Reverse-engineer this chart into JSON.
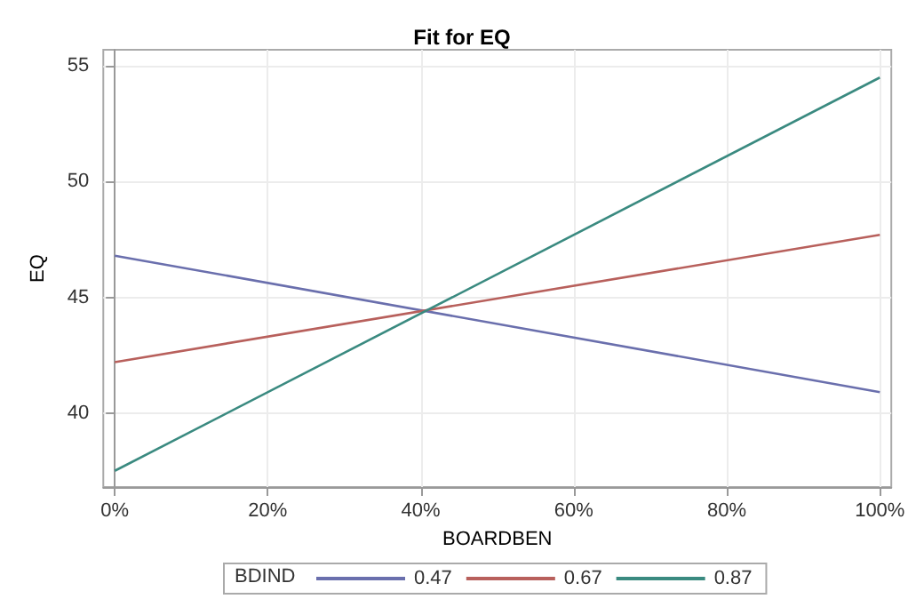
{
  "chart_data": {
    "type": "line",
    "title": "Fit for EQ",
    "xlabel": "BOARDBEN",
    "ylabel": "EQ",
    "legend_title": "BDIND",
    "legend": "bottom",
    "grid": true,
    "marker": "none",
    "line_style": "solid",
    "x": [
      0,
      100
    ],
    "series": [
      {
        "name": "0.47",
        "color": "#6a6fad",
        "values": [
          46.8,
          40.9
        ]
      },
      {
        "name": "0.67",
        "color": "#b8605c",
        "values": [
          42.2,
          47.7
        ]
      },
      {
        "name": "0.87",
        "color": "#3a8a80",
        "values": [
          37.5,
          54.5
        ]
      }
    ],
    "xlim": [
      -1.5,
      101.5
    ],
    "xticks": [
      {
        "value": 0,
        "label": "0%"
      },
      {
        "value": 20,
        "label": "20%"
      },
      {
        "value": 40,
        "label": "40%"
      },
      {
        "value": 60,
        "label": "60%"
      },
      {
        "value": 80,
        "label": "80%"
      },
      {
        "value": 100,
        "label": "100%"
      }
    ],
    "ylim": [
      36.8,
      55.7
    ],
    "yticks": [
      40,
      45,
      50,
      55
    ]
  }
}
